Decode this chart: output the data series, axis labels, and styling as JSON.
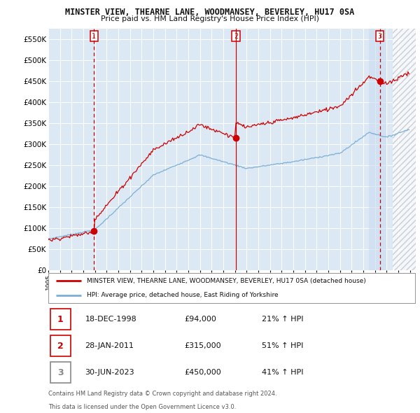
{
  "title1": "MINSTER VIEW, THEARNE LANE, WOODMANSEY, BEVERLEY, HU17 0SA",
  "title2": "Price paid vs. HM Land Registry's House Price Index (HPI)",
  "legend_line1": "MINSTER VIEW, THEARNE LANE, WOODMANSEY, BEVERLEY, HU17 0SA (detached house)",
  "legend_line2": "HPI: Average price, detached house, East Riding of Yorkshire",
  "sale1_date": "18-DEC-1998",
  "sale1_price": 94000,
  "sale1_hpi": "21% ↑ HPI",
  "sale2_date": "28-JAN-2011",
  "sale2_price": 315000,
  "sale2_hpi": "51% ↑ HPI",
  "sale3_date": "30-JUN-2023",
  "sale3_price": 450000,
  "sale3_hpi": "41% ↑ HPI",
  "footnote1": "Contains HM Land Registry data © Crown copyright and database right 2024.",
  "footnote2": "This data is licensed under the Open Government Licence v3.0.",
  "hpi_color": "#7bafd4",
  "sale_color": "#cc0000",
  "bg_color": "#dce9f5",
  "grid_color": "#ffffff",
  "vline_red_color": "#cc0000",
  "vline3_color": "#cc0000",
  "hatch_color": "#bbbbbb",
  "shade_band_color": "#d0e4f5",
  "ylim": [
    0,
    575000
  ],
  "yticks": [
    0,
    50000,
    100000,
    150000,
    200000,
    250000,
    300000,
    350000,
    400000,
    450000,
    500000,
    550000
  ],
  "ytick_labels": [
    "£0",
    "£50K",
    "£100K",
    "£150K",
    "£200K",
    "£250K",
    "£300K",
    "£350K",
    "£400K",
    "£450K",
    "£500K",
    "£550K"
  ],
  "xlim_start": 1995.0,
  "xlim_end": 2026.5,
  "hatch_start": 2024.5,
  "shade_band_start": 2022.5,
  "shade_band_end": 2024.0,
  "xtick_years": [
    1995,
    1996,
    1997,
    1998,
    1999,
    2000,
    2001,
    2002,
    2003,
    2004,
    2005,
    2006,
    2007,
    2008,
    2009,
    2010,
    2011,
    2012,
    2013,
    2014,
    2015,
    2016,
    2017,
    2018,
    2019,
    2020,
    2021,
    2022,
    2023,
    2024,
    2025,
    2026
  ],
  "sale1_t": 1998.917,
  "sale2_t": 2011.083,
  "sale3_t": 2023.417
}
